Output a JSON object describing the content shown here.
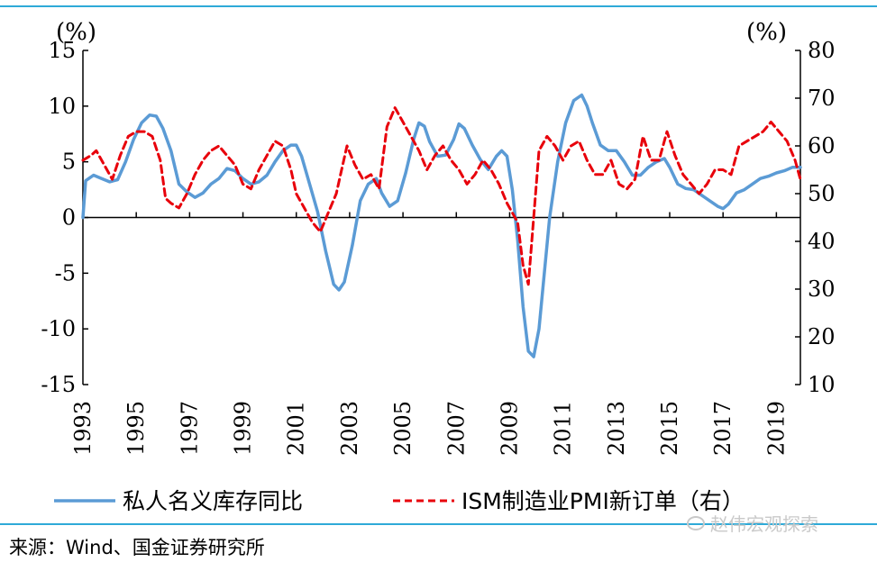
{
  "colors": {
    "rule": "#2eaad8",
    "inventory": "#5b9bd5",
    "ism": "#e8000b",
    "axis": "#000000"
  },
  "source": "来源：Wind、国金证券研究所",
  "watermark": "赵伟宏观探索",
  "chart_data": {
    "type": "line",
    "left_axis": {
      "unit": "(%)",
      "range": [
        -15,
        15
      ],
      "ticks": [
        "15",
        "10",
        "5",
        "0",
        "-5",
        "-10",
        "-15"
      ]
    },
    "right_axis": {
      "unit": "(%)",
      "range": [
        10,
        80
      ],
      "ticks": [
        "80",
        "70",
        "60",
        "50",
        "40",
        "30",
        "20",
        "10"
      ]
    },
    "x_axis": {
      "range": [
        1993,
        2019.9
      ],
      "ticks": [
        "1993",
        "1995",
        "1997",
        "1999",
        "2001",
        "2003",
        "2005",
        "2007",
        "2009",
        "2011",
        "2013",
        "2015",
        "2017",
        "2019"
      ]
    },
    "legend": {
      "placement": "bottom"
    },
    "grid": false,
    "series": [
      {
        "name": "私人名义库存同比",
        "axis": "left",
        "style": "solid",
        "x": [
          1993.0,
          1993.1,
          1993.4,
          1993.7,
          1994.0,
          1994.3,
          1994.6,
          1994.9,
          1995.2,
          1995.5,
          1995.75,
          1996.0,
          1996.3,
          1996.6,
          1996.9,
          1997.2,
          1997.5,
          1997.8,
          1998.1,
          1998.4,
          1998.7,
          1999.0,
          1999.3,
          1999.6,
          1999.9,
          2000.2,
          2000.5,
          2000.8,
          2001.0,
          2001.2,
          2001.5,
          2001.8,
          2002.1,
          2002.4,
          2002.6,
          2002.8,
          2003.1,
          2003.4,
          2003.7,
          2004.0,
          2004.2,
          2004.5,
          2004.8,
          2005.1,
          2005.4,
          2005.6,
          2005.8,
          2006.0,
          2006.3,
          2006.6,
          2006.9,
          2007.1,
          2007.3,
          2007.6,
          2007.9,
          2008.2,
          2008.5,
          2008.7,
          2008.9,
          2009.1,
          2009.3,
          2009.5,
          2009.7,
          2009.9,
          2010.1,
          2010.3,
          2010.5,
          2010.8,
          2011.1,
          2011.4,
          2011.7,
          2011.9,
          2012.1,
          2012.4,
          2012.7,
          2013.0,
          2013.3,
          2013.6,
          2013.9,
          2014.2,
          2014.5,
          2014.8,
          2015.0,
          2015.3,
          2015.6,
          2015.9,
          2016.2,
          2016.5,
          2016.8,
          2017.0,
          2017.2,
          2017.5,
          2017.8,
          2018.1,
          2018.4,
          2018.7,
          2019.0,
          2019.3,
          2019.6,
          2019.9
        ],
        "y": [
          0.0,
          3.3,
          3.8,
          3.5,
          3.2,
          3.4,
          5.0,
          7.0,
          8.5,
          9.2,
          9.1,
          8.0,
          6.0,
          3.0,
          2.3,
          1.8,
          2.2,
          3.0,
          3.5,
          4.4,
          4.2,
          3.5,
          3.0,
          3.2,
          3.8,
          5.0,
          6.0,
          6.5,
          6.5,
          5.5,
          3.0,
          0.5,
          -3.0,
          -6.0,
          -6.5,
          -5.8,
          -2.5,
          1.5,
          3.0,
          3.5,
          2.2,
          1.0,
          1.5,
          4.0,
          7.0,
          8.5,
          8.2,
          6.8,
          5.5,
          5.6,
          7.0,
          8.4,
          8.0,
          6.5,
          5.2,
          4.3,
          5.5,
          6.0,
          5.5,
          2.5,
          -2.0,
          -8.0,
          -12.0,
          -12.5,
          -10.0,
          -5.0,
          0.0,
          5.0,
          8.5,
          10.5,
          11.0,
          10.0,
          8.5,
          6.5,
          6.0,
          6.0,
          5.0,
          3.8,
          3.8,
          4.5,
          5.0,
          5.3,
          4.5,
          3.0,
          2.6,
          2.5,
          2.0,
          1.5,
          1.0,
          0.8,
          1.2,
          2.2,
          2.5,
          3.0,
          3.5,
          3.7,
          4.0,
          4.2,
          4.5,
          4.5
        ]
      },
      {
        "name": "ISM制造业PMI新订单（右）",
        "axis": "right",
        "style": "dashed",
        "x": [
          1993.0,
          1993.3,
          1993.5,
          1993.8,
          1994.1,
          1994.4,
          1994.7,
          1995.0,
          1995.3,
          1995.6,
          1995.9,
          1996.1,
          1996.3,
          1996.6,
          1996.9,
          1997.2,
          1997.5,
          1997.8,
          1998.1,
          1998.4,
          1998.7,
          1999.0,
          1999.3,
          1999.6,
          1999.9,
          2000.2,
          2000.5,
          2000.8,
          2001.0,
          2001.3,
          2001.6,
          2001.9,
          2002.2,
          2002.5,
          2002.7,
          2002.9,
          2003.2,
          2003.5,
          2003.8,
          2004.1,
          2004.4,
          2004.7,
          2005.0,
          2005.3,
          2005.6,
          2005.9,
          2006.2,
          2006.5,
          2006.8,
          2007.1,
          2007.4,
          2007.7,
          2008.0,
          2008.3,
          2008.6,
          2008.9,
          2009.1,
          2009.3,
          2009.5,
          2009.7,
          2009.9,
          2010.1,
          2010.4,
          2010.7,
          2011.0,
          2011.3,
          2011.6,
          2011.9,
          2012.2,
          2012.5,
          2012.8,
          2013.1,
          2013.4,
          2013.7,
          2014.0,
          2014.3,
          2014.6,
          2014.9,
          2015.2,
          2015.5,
          2015.8,
          2016.1,
          2016.4,
          2016.7,
          2017.0,
          2017.3,
          2017.6,
          2017.9,
          2018.2,
          2018.5,
          2018.8,
          2019.1,
          2019.4,
          2019.7,
          2019.9
        ],
        "y": [
          57,
          58,
          59,
          56,
          53,
          58,
          62,
          63,
          63,
          62,
          57,
          49,
          48,
          47,
          50,
          54,
          57,
          59,
          60,
          58,
          56,
          52,
          51,
          55,
          58,
          61,
          60,
          55,
          50,
          47,
          44,
          42,
          46,
          50,
          55,
          60,
          56,
          53,
          54,
          51,
          64,
          68,
          65,
          62,
          59,
          55,
          58,
          60,
          57,
          55,
          52,
          54,
          57,
          55,
          52,
          48,
          46,
          44,
          35,
          31,
          45,
          59,
          62,
          60,
          57,
          60,
          61,
          57,
          54,
          54,
          57,
          52,
          51,
          53,
          62,
          57,
          57,
          63,
          58,
          54,
          52,
          50,
          52,
          55,
          55,
          54,
          60,
          61,
          62,
          63,
          65,
          63,
          61,
          57,
          53
        ]
      }
    ]
  }
}
